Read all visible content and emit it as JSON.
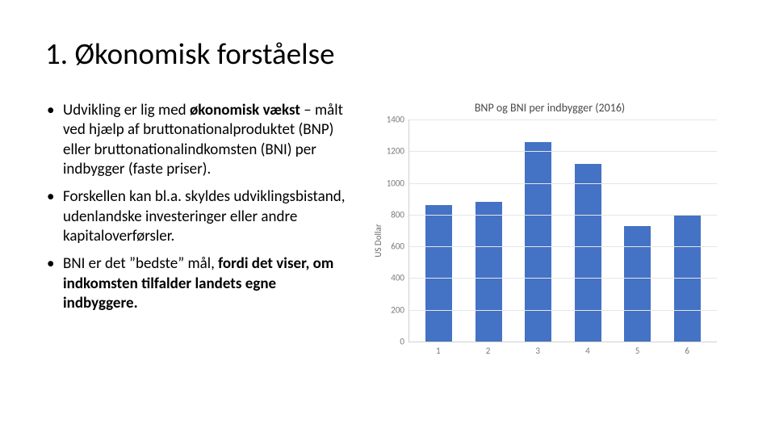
{
  "title": "1. Økonomisk forståelse",
  "bullets": [
    {
      "pre": "Udvikling er lig med ",
      "bold": "økonomisk vækst",
      "post": " – målt ved hjælp af bruttonationalproduktet (BNP) eller bruttonationalindkomsten (BNI) per indbygger (faste priser)."
    },
    {
      "pre": "Forskellen kan bl.a. skyldes udviklingsbistand, udenlandske investeringer eller andre kapitaloverførsler.",
      "bold": "",
      "post": ""
    },
    {
      "pre": "BNI er det ”bedste” mål, ",
      "bold": "fordi det viser, om indkomsten tilfalder landets egne indbyggere.",
      "post": ""
    }
  ],
  "chart": {
    "type": "bar",
    "title": "BNP og BNI per indbygger (2016)",
    "ylabel": "US Dollar",
    "ylim": [
      0,
      1400
    ],
    "ytick_step": 200,
    "yticks": [
      0,
      200,
      400,
      600,
      800,
      1000,
      1200,
      1400
    ],
    "categories": [
      "1",
      "2",
      "3",
      "4",
      "5",
      "6"
    ],
    "values": [
      860,
      880,
      1260,
      1120,
      730,
      800
    ],
    "bar_color": "#4472c4",
    "bar_width_pct": 54,
    "background_color": "#ffffff",
    "grid_color": "#e6e6e6",
    "axis_color": "#d0d0d0",
    "tick_font_size": 11,
    "tick_color": "#7a7a7a",
    "title_font_size": 14,
    "title_color": "#4a4a4a"
  }
}
